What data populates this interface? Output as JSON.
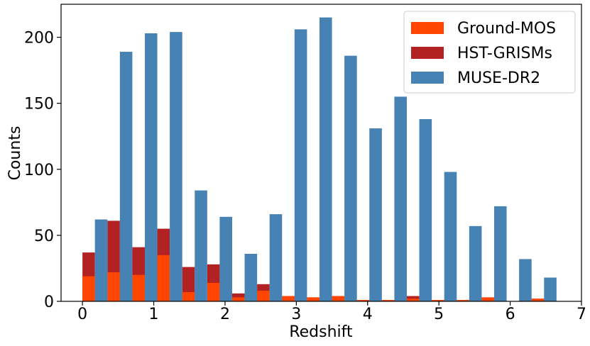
{
  "chart_data": {
    "type": "bar",
    "title": "",
    "xlabel": "Redshift",
    "ylabel": "Counts",
    "xlim": [
      -0.3,
      7.0
    ],
    "ylim": [
      0,
      225
    ],
    "xticks": [
      0,
      1,
      2,
      3,
      4,
      5,
      6,
      7
    ],
    "yticks": [
      0,
      50,
      100,
      150,
      200
    ],
    "bin_width": 0.35,
    "bin_starts": [
      0,
      0.35,
      0.7,
      1.05,
      1.4,
      1.75,
      2.1,
      2.45,
      2.8,
      3.15,
      3.5,
      3.85,
      4.2,
      4.55,
      4.9,
      5.25,
      5.6,
      5.95,
      6.3
    ],
    "grid": false,
    "legend_position": "top-right",
    "series": [
      {
        "name": "Ground-MOS",
        "color": "#ff4500",
        "stacked_below": "HST-GRISMs",
        "values": [
          19,
          22,
          20,
          35,
          7,
          14,
          3,
          8,
          4,
          3,
          4,
          1,
          1,
          2,
          1,
          1,
          3,
          0,
          2
        ]
      },
      {
        "name": "HST-GRISMs",
        "color": "#b22222",
        "values": [
          37,
          61,
          41,
          55,
          26,
          28,
          6,
          13,
          4,
          3,
          4,
          1,
          1,
          4,
          1,
          1,
          3,
          0,
          2
        ]
      },
      {
        "name": "MUSE-DR2",
        "color": "#4682b4",
        "values": [
          62,
          189,
          203,
          204,
          84,
          64,
          36,
          66,
          206,
          215,
          186,
          131,
          155,
          138,
          98,
          57,
          72,
          32,
          18
        ]
      }
    ]
  }
}
